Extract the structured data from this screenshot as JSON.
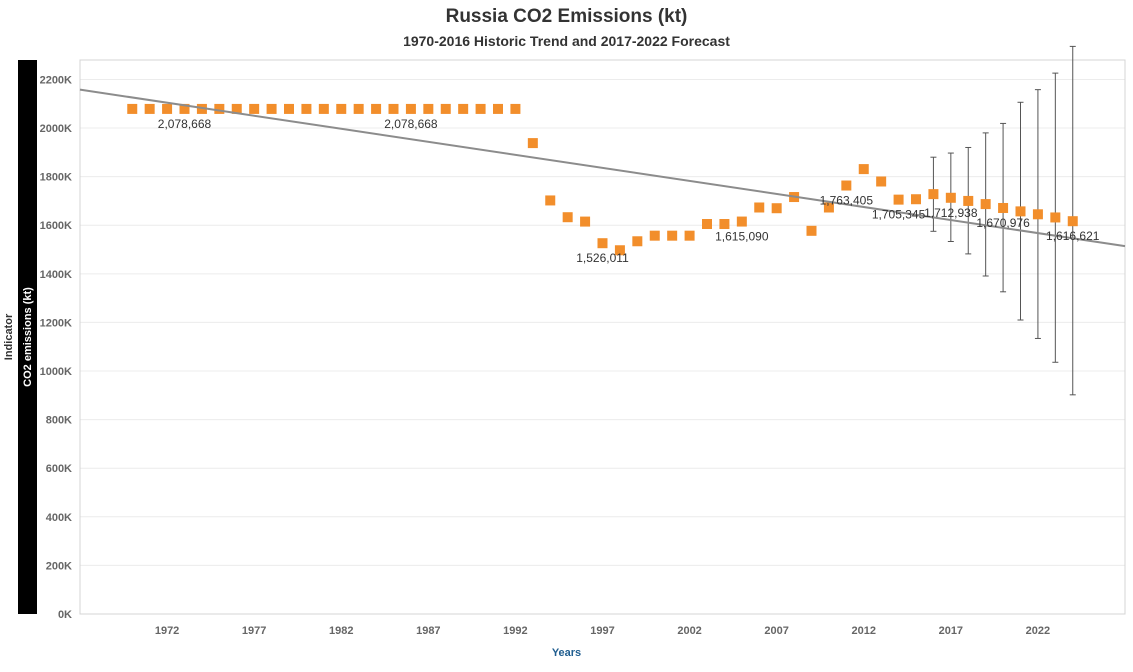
{
  "chart_data": {
    "type": "scatter",
    "title": "Russia CO2 Emissions (kt)",
    "subtitle": "1970-2016 Historic Trend and 2017-2022 Forecast",
    "xlabel": "Years",
    "row_header_title": "Indicator",
    "row_header_value": "CO2 emissions (kt)",
    "xlim": [
      1967,
      2027
    ],
    "ylim": [
      0,
      2280
    ],
    "x_ticks": [
      1972,
      1977,
      1982,
      1987,
      1992,
      1997,
      2002,
      2007,
      2012,
      2017,
      2022
    ],
    "y_ticks": [
      0,
      200,
      400,
      600,
      800,
      1000,
      1200,
      1400,
      1600,
      1800,
      2000,
      2200
    ],
    "y_tick_labels": [
      "0K",
      "200K",
      "400K",
      "600K",
      "800K",
      "1000K",
      "1200K",
      "1400K",
      "1600K",
      "1800K",
      "2000K",
      "2200K"
    ],
    "grid": "horizontal",
    "marker_color": "#f28e2b",
    "trend_color": "#8c8c8c",
    "errorbar_color": "#555555",
    "points": [
      {
        "x": 1970,
        "y": 2078.668
      },
      {
        "x": 1971,
        "y": 2078.668
      },
      {
        "x": 1972,
        "y": 2078.668
      },
      {
        "x": 1973,
        "y": 2078.668
      },
      {
        "x": 1974,
        "y": 2078.668
      },
      {
        "x": 1975,
        "y": 2078.668
      },
      {
        "x": 1976,
        "y": 2078.668
      },
      {
        "x": 1977,
        "y": 2078.668
      },
      {
        "x": 1978,
        "y": 2078.668
      },
      {
        "x": 1979,
        "y": 2078.668
      },
      {
        "x": 1980,
        "y": 2078.668
      },
      {
        "x": 1981,
        "y": 2078.668
      },
      {
        "x": 1982,
        "y": 2078.668
      },
      {
        "x": 1983,
        "y": 2078.668
      },
      {
        "x": 1984,
        "y": 2078.668
      },
      {
        "x": 1985,
        "y": 2078.668
      },
      {
        "x": 1986,
        "y": 2078.668
      },
      {
        "x": 1987,
        "y": 2078.668
      },
      {
        "x": 1988,
        "y": 2078.668
      },
      {
        "x": 1989,
        "y": 2078.668
      },
      {
        "x": 1990,
        "y": 2078.668
      },
      {
        "x": 1991,
        "y": 2078.668
      },
      {
        "x": 1992,
        "y": 2078.668
      },
      {
        "x": 1993,
        "y": 1938
      },
      {
        "x": 1994,
        "y": 1702
      },
      {
        "x": 1995,
        "y": 1633
      },
      {
        "x": 1996,
        "y": 1615
      },
      {
        "x": 1997,
        "y": 1526.011
      },
      {
        "x": 1998,
        "y": 1497
      },
      {
        "x": 1999,
        "y": 1534
      },
      {
        "x": 2000,
        "y": 1557
      },
      {
        "x": 2001,
        "y": 1557
      },
      {
        "x": 2002,
        "y": 1557
      },
      {
        "x": 2003,
        "y": 1605
      },
      {
        "x": 2004,
        "y": 1605
      },
      {
        "x": 2005,
        "y": 1615.09
      },
      {
        "x": 2006,
        "y": 1673
      },
      {
        "x": 2007,
        "y": 1670
      },
      {
        "x": 2008,
        "y": 1716
      },
      {
        "x": 2009,
        "y": 1577
      },
      {
        "x": 2010,
        "y": 1673
      },
      {
        "x": 2011,
        "y": 1763.405
      },
      {
        "x": 2012,
        "y": 1831
      },
      {
        "x": 2013,
        "y": 1780
      },
      {
        "x": 2014,
        "y": 1705.345
      },
      {
        "x": 2015,
        "y": 1707
      },
      {
        "x": 2016,
        "y": 1728
      },
      {
        "x": 2017,
        "y": 1712.938,
        "lo": 1533,
        "hi": 1897
      },
      {
        "x": 2018,
        "y": 1700,
        "lo": 1482,
        "hi": 1920
      },
      {
        "x": 2019,
        "y": 1687,
        "lo": 1391,
        "hi": 1980
      },
      {
        "x": 2020,
        "y": 1670.976,
        "lo": 1326,
        "hi": 2019
      },
      {
        "x": 2021,
        "y": 1657,
        "lo": 1210,
        "hi": 2106
      },
      {
        "x": 2022,
        "y": 1645,
        "lo": 1134,
        "hi": 2158
      },
      {
        "x": 2023,
        "y": 1632,
        "lo": 1036,
        "hi": 2226
      },
      {
        "x": 2024,
        "y": 1616.621,
        "lo": 902,
        "hi": 2336
      }
    ],
    "errorbar_2016": {
      "x": 2016,
      "lo": 1575,
      "hi": 1880
    },
    "trend_line": {
      "x": [
        1967,
        2027
      ],
      "y": [
        2158,
        1514
      ]
    },
    "data_labels": [
      {
        "x": 1973,
        "y": 2078.668,
        "text": "2,078,668",
        "pos": "below"
      },
      {
        "x": 1986,
        "y": 2078.668,
        "text": "2,078,668",
        "pos": "below"
      },
      {
        "x": 1997,
        "y": 1526.011,
        "text": "1,526,011",
        "pos": "below"
      },
      {
        "x": 2005,
        "y": 1615.09,
        "text": "1,615,090",
        "pos": "below"
      },
      {
        "x": 2011,
        "y": 1763.405,
        "text": "1,763,405",
        "pos": "below"
      },
      {
        "x": 2014,
        "y": 1705.345,
        "text": "1,705,345",
        "pos": "below"
      },
      {
        "x": 2017,
        "y": 1712.938,
        "text": "1,712,938",
        "pos": "below"
      },
      {
        "x": 2020,
        "y": 1670.976,
        "text": "1,670,976",
        "pos": "below"
      },
      {
        "x": 2024,
        "y": 1616.621,
        "text": "1,616,621",
        "pos": "below"
      }
    ]
  }
}
